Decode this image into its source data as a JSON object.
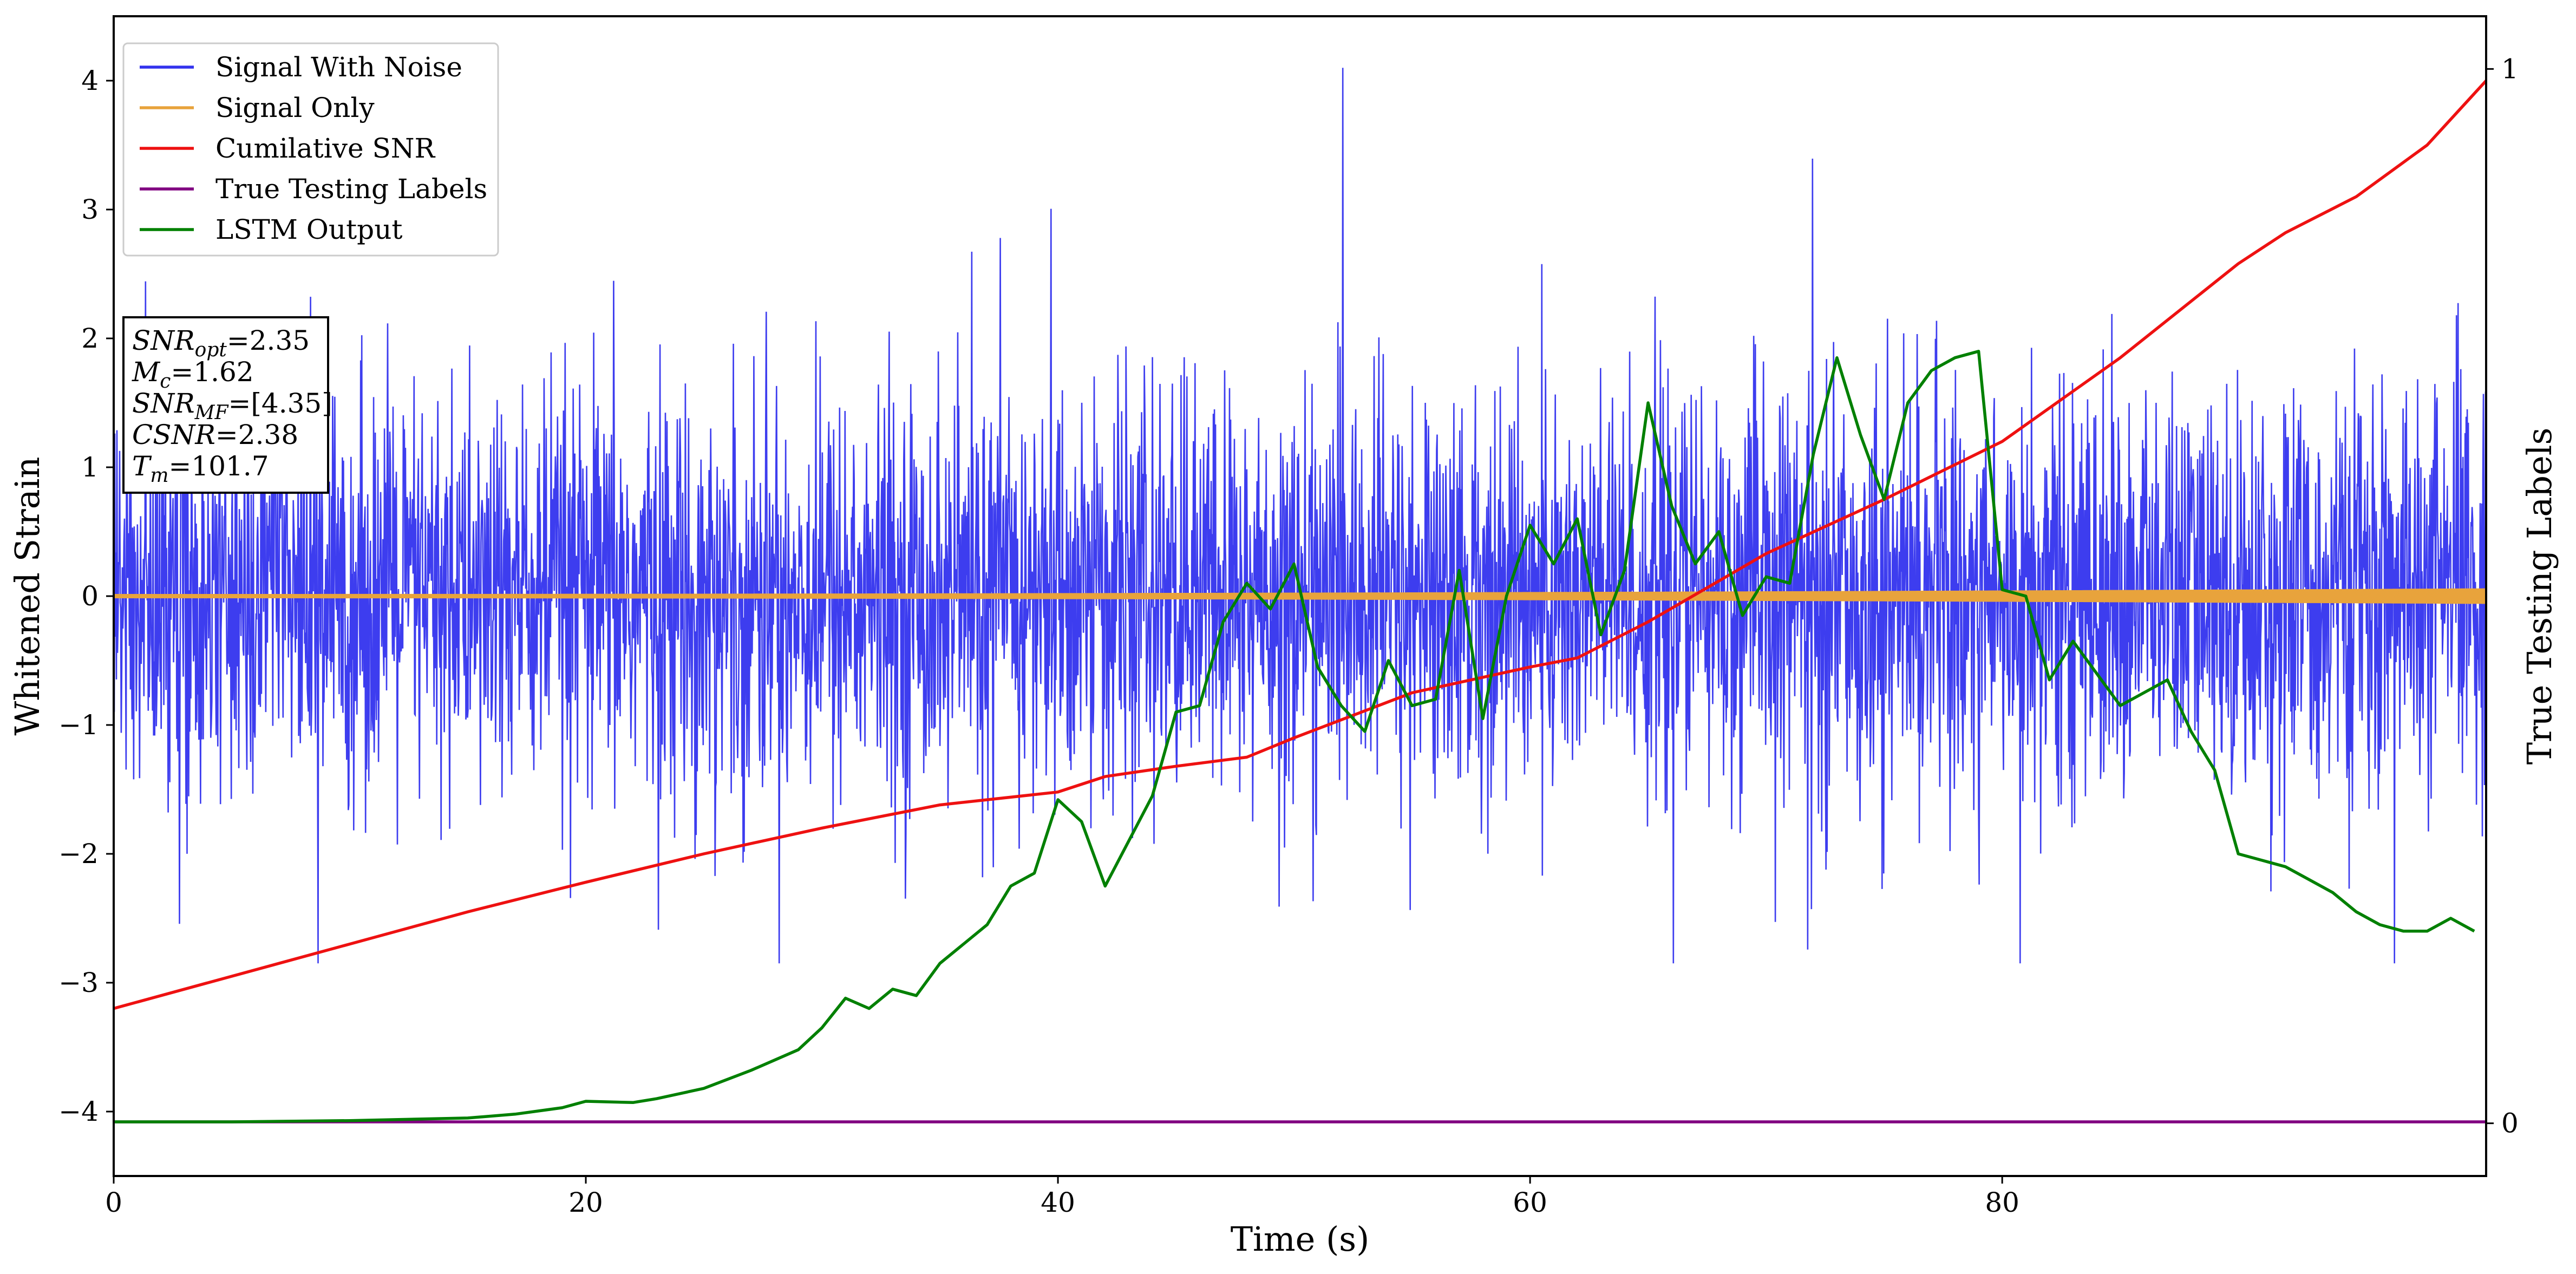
{
  "chart_data": {
    "type": "line",
    "xlabel": "Time (s)",
    "ylabel": "Whitened Strain",
    "y2label": "True Testing Labels",
    "xlim": [
      0,
      100.5
    ],
    "ylim": [
      -4.5,
      4.5
    ],
    "y2lim": [
      -0.05,
      1.05
    ],
    "xticks": [
      "0",
      "20",
      "40",
      "60",
      "80"
    ],
    "yticks": [
      "4",
      "3",
      "2",
      "1",
      "0",
      "−1",
      "−2",
      "−3",
      "−4"
    ],
    "y2ticks": [
      "1",
      "0"
    ],
    "legend_placement": "upper-left",
    "grid": false,
    "series": [
      {
        "name": "Signal With Noise",
        "color": "#3333ee",
        "noise_std": 0.78,
        "range": [
          -2.85,
          4.1
        ]
      },
      {
        "name": "Signal Only",
        "color": "#e8a33c",
        "amplitude_start": 0.015,
        "amplitude_end": 0.06
      },
      {
        "name": "Cumilative SNR",
        "color": "#ee1111",
        "x": [
          0,
          5,
          10,
          15,
          20,
          25,
          30,
          35,
          40,
          42,
          45,
          48,
          50,
          55,
          60,
          62,
          65,
          70,
          75,
          80,
          85,
          90,
          92,
          95,
          98,
          100.5
        ],
        "y": [
          -3.2,
          -2.95,
          -2.7,
          -2.45,
          -2.22,
          -2.0,
          -1.8,
          -1.62,
          -1.52,
          -1.4,
          -1.32,
          -1.25,
          -1.1,
          -0.75,
          -0.55,
          -0.48,
          -0.2,
          0.33,
          0.75,
          1.2,
          1.85,
          2.58,
          2.82,
          3.1,
          3.5,
          4.0
        ]
      },
      {
        "name": "True Testing Labels",
        "color": "#800080",
        "x": [
          0,
          100.5
        ],
        "y": [
          -4.08,
          -4.08
        ]
      },
      {
        "name": "LSTM Output",
        "color": "#008000",
        "x": [
          0,
          5,
          10,
          15,
          17,
          19,
          20,
          22,
          23,
          25,
          27,
          29,
          30,
          31,
          32,
          33,
          34,
          35,
          37,
          38,
          39,
          40,
          41,
          42,
          43,
          44,
          45,
          46,
          47,
          48,
          49,
          50,
          51,
          52,
          53,
          54,
          55,
          56,
          57,
          58,
          59,
          60,
          61,
          62,
          63,
          64,
          65,
          66,
          67,
          68,
          69,
          70,
          71,
          72,
          73,
          74,
          75,
          76,
          77,
          78,
          79,
          80,
          81,
          82,
          83,
          84,
          85,
          86,
          87,
          88,
          89,
          90,
          91,
          92,
          93,
          94,
          95,
          96,
          97,
          98,
          99,
          100
        ],
        "y": [
          -4.08,
          -4.08,
          -4.07,
          -4.05,
          -4.02,
          -3.97,
          -3.92,
          -3.93,
          -3.9,
          -3.82,
          -3.68,
          -3.52,
          -3.35,
          -3.12,
          -3.2,
          -3.05,
          -3.1,
          -2.85,
          -2.55,
          -2.25,
          -2.15,
          -1.58,
          -1.75,
          -2.25,
          -1.9,
          -1.55,
          -0.9,
          -0.85,
          -0.2,
          0.1,
          -0.1,
          0.25,
          -0.55,
          -0.85,
          -1.05,
          -0.5,
          -0.85,
          -0.8,
          0.2,
          -0.95,
          0.0,
          0.55,
          0.25,
          0.6,
          -0.3,
          0.2,
          1.5,
          0.7,
          0.25,
          0.5,
          -0.15,
          0.15,
          0.1,
          1.1,
          1.85,
          1.25,
          0.75,
          1.5,
          1.75,
          1.85,
          1.9,
          0.05,
          0.0,
          -0.65,
          -0.35,
          -0.6,
          -0.85,
          -0.75,
          -0.65,
          -1.05,
          -1.35,
          -2.0,
          -2.05,
          -2.1,
          -2.2,
          -2.3,
          -2.45,
          -2.55,
          -2.6,
          -2.6,
          -2.5,
          -2.6
        ]
      }
    ],
    "annotation": {
      "lines": [
        {
          "sym": "SNR",
          "sub": "opt",
          "val": "=2.35"
        },
        {
          "sym": "M",
          "sub": "c",
          "val": "=1.62"
        },
        {
          "sym": "SNR",
          "sub": "MF",
          "val": "=[4.35]"
        },
        {
          "sym": "CSNR",
          "sub": "",
          "val": "=2.38"
        },
        {
          "sym": "T",
          "sub": "m",
          "val": "=101.7"
        }
      ]
    }
  }
}
